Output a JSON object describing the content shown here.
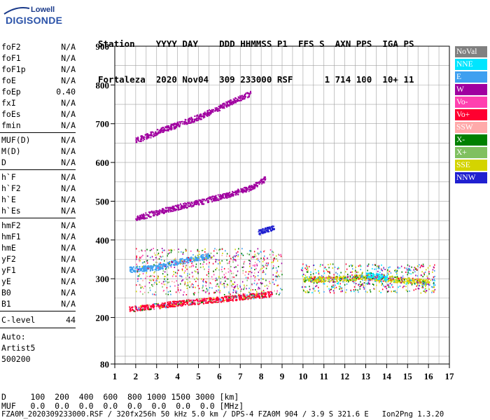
{
  "logo": {
    "top": "Lowell",
    "main": "DIGISONDE"
  },
  "header": {
    "line1": "Station    YYYY DAY    DDD HHMMSS P1  FFS S  AXN PPS  IGA PS",
    "line2": "Fortaleza  2020 Nov04  309 233000 RSF      1 714 100  10+ 11"
  },
  "params": {
    "group1": [
      {
        "name": "foF2",
        "value": "N/A"
      },
      {
        "name": "foF1",
        "value": "N/A"
      },
      {
        "name": "foF1p",
        "value": "N/A"
      },
      {
        "name": "foE",
        "value": "N/A"
      },
      {
        "name": "foEp",
        "value": "0.40"
      },
      {
        "name": "fxI",
        "value": "N/A"
      },
      {
        "name": "foEs",
        "value": "N/A"
      },
      {
        "name": "fmin",
        "value": "N/A"
      }
    ],
    "group2": [
      {
        "name": "MUF(D)",
        "value": "N/A"
      },
      {
        "name": "M(D)",
        "value": "N/A"
      },
      {
        "name": "D",
        "value": "N/A"
      }
    ],
    "group3": [
      {
        "name": "h`F",
        "value": "N/A"
      },
      {
        "name": "h`F2",
        "value": "N/A"
      },
      {
        "name": "h`E",
        "value": "N/A"
      },
      {
        "name": "h`Es",
        "value": "N/A"
      }
    ],
    "group4": [
      {
        "name": "hmF2",
        "value": "N/A"
      },
      {
        "name": "hmF1",
        "value": "N/A"
      },
      {
        "name": "hmE",
        "value": "N/A"
      },
      {
        "name": "yF2",
        "value": "N/A"
      },
      {
        "name": "yF1",
        "value": "N/A"
      },
      {
        "name": "yE",
        "value": "N/A"
      },
      {
        "name": "B0",
        "value": "N/A"
      },
      {
        "name": "B1",
        "value": "N/A"
      }
    ],
    "clevel": {
      "name": "C-level",
      "value": "44"
    },
    "auto": [
      "Auto:",
      "Artist5",
      "500200"
    ]
  },
  "legend": [
    {
      "label": "NoVal",
      "color": "#808080"
    },
    {
      "label": "NNE",
      "color": "#00e5ff"
    },
    {
      "label": "E",
      "color": "#3fa0f0"
    },
    {
      "label": "W",
      "color": "#a000a0"
    },
    {
      "label": "Vo-",
      "color": "#ff40b0"
    },
    {
      "label": "Vo+",
      "color": "#ff0030"
    },
    {
      "label": "SSW",
      "color": "#ffaaaa"
    },
    {
      "label": "X-",
      "color": "#008000"
    },
    {
      "label": "X+",
      "color": "#80c060"
    },
    {
      "label": "SSE",
      "color": "#d4d400"
    },
    {
      "label": "NNW",
      "color": "#2020d0"
    }
  ],
  "bottom": {
    "d_line": "D     100  200  400  600  800 1000 1500 3000 [km]",
    "muf_line": "MUF   0.0  0.0  0.0  0.0  0.0  0.0  0.0  0.0 [MHz]"
  },
  "footer": "FZA0M_2020309233000.RSF / 320fx256h 50 kHz 5.0 km / DPS-4 FZA0M 904 / 3.9 S 321.6 E   Ion2Png 1.3.20",
  "chart_data": {
    "type": "scatter",
    "title": "",
    "xlabel": "",
    "ylabel": "",
    "xlim": [
      1,
      17
    ],
    "ylim": [
      80,
      900
    ],
    "xticks": [
      1,
      2,
      3,
      4,
      5,
      6,
      7,
      8,
      9,
      10,
      11,
      12,
      13,
      14,
      15,
      16,
      17
    ],
    "yticks": [
      80,
      200,
      300,
      400,
      500,
      600,
      700,
      800,
      900
    ],
    "grid": true,
    "legend_position": "right",
    "traces": [
      {
        "name": "Vo+",
        "x": [
          1.7,
          4,
          6,
          8.5
        ],
        "y": [
          222,
          238,
          248,
          262
        ]
      },
      {
        "name": "E",
        "x": [
          1.7,
          3,
          4,
          5.5
        ],
        "y": [
          325,
          330,
          345,
          360
        ]
      },
      {
        "name": "W",
        "x": [
          2,
          3.5,
          5,
          6.5,
          7.5,
          8.2
        ],
        "y": [
          458,
          480,
          498,
          520,
          536,
          560
        ]
      },
      {
        "name": "W",
        "x": [
          2,
          3.5,
          5,
          6.5,
          7.5
        ],
        "y": [
          658,
          690,
          718,
          756,
          780
        ]
      },
      {
        "name": "NNW",
        "x": [
          7.8,
          8.6
        ],
        "y": [
          420,
          435
        ]
      },
      {
        "name": "SSE",
        "x": [
          10,
          11.5,
          12.8,
          14.2,
          16
        ],
        "y": [
          300,
          300,
          305,
          300,
          292
        ]
      },
      {
        "name": "NNE",
        "x": [
          13,
          14
        ],
        "y": [
          310,
          305
        ]
      }
    ]
  }
}
